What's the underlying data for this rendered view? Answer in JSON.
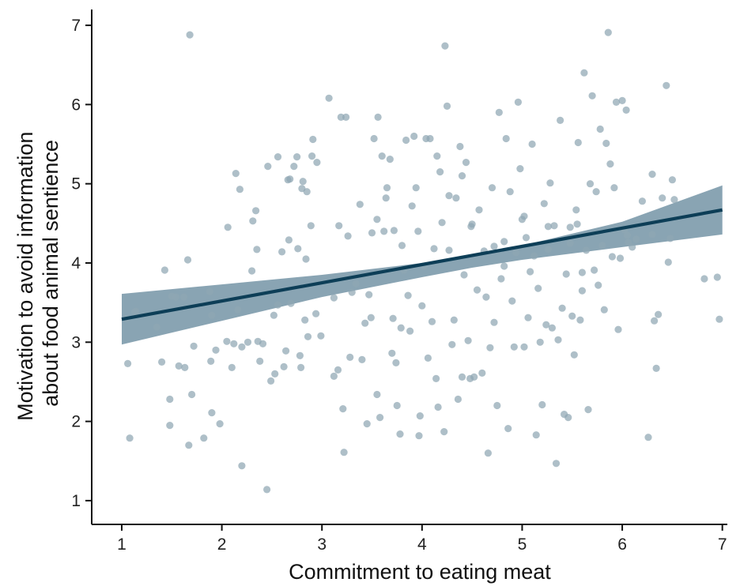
{
  "chart_data": {
    "type": "scatter",
    "title": "",
    "xlabel": "Commitment to eating meat",
    "ylabel_lines": [
      "Motivation to avoid information",
      "about food animal sentience"
    ],
    "xlim": [
      0.7,
      7.05
    ],
    "ylim": [
      0.7,
      7.2
    ],
    "x_ticks": [
      1,
      2,
      3,
      4,
      5,
      6,
      7
    ],
    "y_ticks": [
      1,
      2,
      3,
      4,
      5,
      6,
      7
    ],
    "grid": false,
    "colors": {
      "points": "#8fa6b3",
      "line": "#0d3e57",
      "band": "#5b8196",
      "axis": "#111111"
    },
    "regression": {
      "x": [
        1,
        7
      ],
      "y": [
        3.29,
        4.67
      ]
    },
    "confidence_band": {
      "x": [
        1,
        2,
        3,
        4,
        4.5,
        5,
        6,
        7
      ],
      "lower": [
        2.97,
        3.27,
        3.57,
        3.82,
        3.94,
        4.04,
        4.2,
        4.36
      ],
      "upper": [
        3.61,
        3.73,
        3.85,
        4.0,
        4.1,
        4.22,
        4.52,
        4.98
      ]
    },
    "points": [
      [
        1.08,
        1.79
      ],
      [
        1.06,
        2.73
      ],
      [
        1.14,
        3.39
      ],
      [
        1.35,
        3.19
      ],
      [
        1.4,
        2.75
      ],
      [
        1.43,
        3.91
      ],
      [
        1.48,
        1.95
      ],
      [
        1.48,
        2.28
      ],
      [
        1.5,
        3.58
      ],
      [
        1.54,
        3.57
      ],
      [
        1.57,
        2.7
      ],
      [
        1.63,
        2.68
      ],
      [
        1.66,
        4.04
      ],
      [
        1.67,
        1.7
      ],
      [
        1.68,
        6.88
      ],
      [
        1.7,
        2.34
      ],
      [
        1.72,
        2.95
      ],
      [
        1.82,
        1.79
      ],
      [
        1.89,
        2.76
      ],
      [
        1.9,
        2.11
      ],
      [
        1.9,
        3.34
      ],
      [
        1.94,
        2.9
      ],
      [
        1.98,
        1.97
      ],
      [
        2.05,
        3.01
      ],
      [
        2.06,
        4.45
      ],
      [
        2.1,
        2.68
      ],
      [
        2.12,
        2.98
      ],
      [
        2.14,
        5.13
      ],
      [
        2.16,
        3.41
      ],
      [
        2.18,
        4.93
      ],
      [
        2.2,
        2.94
      ],
      [
        2.2,
        1.44
      ],
      [
        2.26,
        3.0
      ],
      [
        2.3,
        3.9
      ],
      [
        2.31,
        4.53
      ],
      [
        2.34,
        4.66
      ],
      [
        2.35,
        4.17
      ],
      [
        2.36,
        3.01
      ],
      [
        2.38,
        2.76
      ],
      [
        2.41,
        2.98
      ],
      [
        2.45,
        1.14
      ],
      [
        2.46,
        5.22
      ],
      [
        2.49,
        2.51
      ],
      [
        2.52,
        3.34
      ],
      [
        2.53,
        2.6
      ],
      [
        2.56,
        5.34
      ],
      [
        2.6,
        4.14
      ],
      [
        2.62,
        2.69
      ],
      [
        2.64,
        2.89
      ],
      [
        2.66,
        5.05
      ],
      [
        2.67,
        4.29
      ],
      [
        2.68,
        5.06
      ],
      [
        2.69,
        3.49
      ],
      [
        2.72,
        5.22
      ],
      [
        2.75,
        5.34
      ],
      [
        2.76,
        4.18
      ],
      [
        2.78,
        2.83
      ],
      [
        2.79,
        2.68
      ],
      [
        2.8,
        4.94
      ],
      [
        2.81,
        5.03
      ],
      [
        2.83,
        3.28
      ],
      [
        2.84,
        4.05
      ],
      [
        2.86,
        3.07
      ],
      [
        2.89,
        4.47
      ],
      [
        2.9,
        5.35
      ],
      [
        2.91,
        5.56
      ],
      [
        2.94,
        3.36
      ],
      [
        2.95,
        5.27
      ],
      [
        2.99,
        3.08
      ],
      [
        3.07,
        6.08
      ],
      [
        3.12,
        2.57
      ],
      [
        3.16,
        2.65
      ],
      [
        3.17,
        4.47
      ],
      [
        3.19,
        5.84
      ],
      [
        3.21,
        2.16
      ],
      [
        3.22,
        1.61
      ],
      [
        3.24,
        5.84
      ],
      [
        3.26,
        4.34
      ],
      [
        3.28,
        2.81
      ],
      [
        3.3,
        3.63
      ],
      [
        3.38,
        4.74
      ],
      [
        3.4,
        2.78
      ],
      [
        3.43,
        3.24
      ],
      [
        3.45,
        1.97
      ],
      [
        3.47,
        3.6
      ],
      [
        3.49,
        3.31
      ],
      [
        3.5,
        4.38
      ],
      [
        3.52,
        5.57
      ],
      [
        3.55,
        2.34
      ],
      [
        3.56,
        5.84
      ],
      [
        3.58,
        2.05
      ],
      [
        3.6,
        5.35
      ],
      [
        3.62,
        4.4
      ],
      [
        3.64,
        4.82
      ],
      [
        3.65,
        4.95
      ],
      [
        3.68,
        5.31
      ],
      [
        3.7,
        2.86
      ],
      [
        3.71,
        3.3
      ],
      [
        3.72,
        4.41
      ],
      [
        3.74,
        2.74
      ],
      [
        3.75,
        2.2
      ],
      [
        3.78,
        1.84
      ],
      [
        3.79,
        3.18
      ],
      [
        3.8,
        4.22
      ],
      [
        3.82,
        3.91
      ],
      [
        3.84,
        5.55
      ],
      [
        3.86,
        3.59
      ],
      [
        3.88,
        3.14
      ],
      [
        3.9,
        4.72
      ],
      [
        3.92,
        5.6
      ],
      [
        3.94,
        4.95
      ],
      [
        3.97,
        1.82
      ],
      [
        3.98,
        2.07
      ],
      [
        4.0,
        3.46
      ],
      [
        4.02,
        3.96
      ],
      [
        4.04,
        5.57
      ],
      [
        4.06,
        2.8
      ],
      [
        4.08,
        5.57
      ],
      [
        4.1,
        3.26
      ],
      [
        4.12,
        4.18
      ],
      [
        4.14,
        2.54
      ],
      [
        4.16,
        2.18
      ],
      [
        4.18,
        5.15
      ],
      [
        4.2,
        4.51
      ],
      [
        4.22,
        1.87
      ],
      [
        4.23,
        6.74
      ],
      [
        4.25,
        5.98
      ],
      [
        4.27,
        4.85
      ],
      [
        4.3,
        2.97
      ],
      [
        4.32,
        3.28
      ],
      [
        4.34,
        4.82
      ],
      [
        4.36,
        2.28
      ],
      [
        4.38,
        5.47
      ],
      [
        4.4,
        2.56
      ],
      [
        4.42,
        3.85
      ],
      [
        4.44,
        5.27
      ],
      [
        4.46,
        3.02
      ],
      [
        4.48,
        2.54
      ],
      [
        4.5,
        4.49
      ],
      [
        4.52,
        2.56
      ],
      [
        4.55,
        3.66
      ],
      [
        4.57,
        4.67
      ],
      [
        4.6,
        2.61
      ],
      [
        4.62,
        4.15
      ],
      [
        4.64,
        3.57
      ],
      [
        4.66,
        1.6
      ],
      [
        4.68,
        2.93
      ],
      [
        4.7,
        4.95
      ],
      [
        4.72,
        3.25
      ],
      [
        4.75,
        2.2
      ],
      [
        4.77,
        5.9
      ],
      [
        4.79,
        3.8
      ],
      [
        4.82,
        4.27
      ],
      [
        4.84,
        5.57
      ],
      [
        4.86,
        1.91
      ],
      [
        4.88,
        4.9
      ],
      [
        4.9,
        3.52
      ],
      [
        4.92,
        2.94
      ],
      [
        4.94,
        4.13
      ],
      [
        4.96,
        6.03
      ],
      [
        4.98,
        5.19
      ],
      [
        5.0,
        4.55
      ],
      [
        5.02,
        2.94
      ],
      [
        5.04,
        4.32
      ],
      [
        5.06,
        3.31
      ],
      [
        5.08,
        3.89
      ],
      [
        5.1,
        5.5
      ],
      [
        5.12,
        4.09
      ],
      [
        5.14,
        1.83
      ],
      [
        5.16,
        3.68
      ],
      [
        5.18,
        3.0
      ],
      [
        5.2,
        2.21
      ],
      [
        5.22,
        4.75
      ],
      [
        5.24,
        3.22
      ],
      [
        5.26,
        4.17
      ],
      [
        5.28,
        5.01
      ],
      [
        5.3,
        3.18
      ],
      [
        5.32,
        4.47
      ],
      [
        5.34,
        1.47
      ],
      [
        5.36,
        3.03
      ],
      [
        5.38,
        5.8
      ],
      [
        5.4,
        3.43
      ],
      [
        5.42,
        2.09
      ],
      [
        5.44,
        3.86
      ],
      [
        5.46,
        2.05
      ],
      [
        5.48,
        4.45
      ],
      [
        5.5,
        3.33
      ],
      [
        5.52,
        2.84
      ],
      [
        5.54,
        4.67
      ],
      [
        5.56,
        5.52
      ],
      [
        5.58,
        3.28
      ],
      [
        5.6,
        3.65
      ],
      [
        5.62,
        6.4
      ],
      [
        5.64,
        4.16
      ],
      [
        5.66,
        2.15
      ],
      [
        5.68,
        5.0
      ],
      [
        5.7,
        6.11
      ],
      [
        5.72,
        3.91
      ],
      [
        5.74,
        4.9
      ],
      [
        5.76,
        3.72
      ],
      [
        5.78,
        5.69
      ],
      [
        5.8,
        4.22
      ],
      [
        5.82,
        3.41
      ],
      [
        5.84,
        5.51
      ],
      [
        5.86,
        6.91
      ],
      [
        5.88,
        5.25
      ],
      [
        5.9,
        4.08
      ],
      [
        5.92,
        4.95
      ],
      [
        5.94,
        6.03
      ],
      [
        5.96,
        3.16
      ],
      [
        5.98,
        4.06
      ],
      [
        6.0,
        6.05
      ],
      [
        6.02,
        4.42
      ],
      [
        6.04,
        5.93
      ],
      [
        6.06,
        4.26
      ],
      [
        6.1,
        4.2
      ],
      [
        6.14,
        4.3
      ],
      [
        6.2,
        4.78
      ],
      [
        6.26,
        1.8
      ],
      [
        6.3,
        5.12
      ],
      [
        6.32,
        3.27
      ],
      [
        6.34,
        2.67
      ],
      [
        6.36,
        3.35
      ],
      [
        6.4,
        4.82
      ],
      [
        6.44,
        6.24
      ],
      [
        6.46,
        4.01
      ],
      [
        6.48,
        4.31
      ],
      [
        6.5,
        5.05
      ],
      [
        6.82,
        3.8
      ],
      [
        6.95,
        3.82
      ],
      [
        6.97,
        3.29
      ],
      [
        1.05,
        3.3
      ],
      [
        1.13,
        3.38
      ],
      [
        1.62,
        3.57
      ],
      [
        1.88,
        3.64
      ],
      [
        2.56,
        3.47
      ],
      [
        3.12,
        3.56
      ],
      [
        4.49,
        4.46
      ],
      [
        4.27,
        4.16
      ],
      [
        4.72,
        4.21
      ],
      [
        5.02,
        4.59
      ],
      [
        5.26,
        4.46
      ],
      [
        5.48,
        4.25
      ],
      [
        6.05,
        4.35
      ],
      [
        5.55,
        4.49
      ],
      [
        6.52,
        4.8
      ],
      [
        6.3,
        4.36
      ],
      [
        4.4,
        5.1
      ],
      [
        4.15,
        5.35
      ],
      [
        3.55,
        4.55
      ],
      [
        2.85,
        4.9
      ],
      [
        3.34,
        3.74
      ],
      [
        3.96,
        4.4
      ],
      [
        4.82,
        3.96
      ],
      [
        5.6,
        3.88
      ]
    ]
  }
}
